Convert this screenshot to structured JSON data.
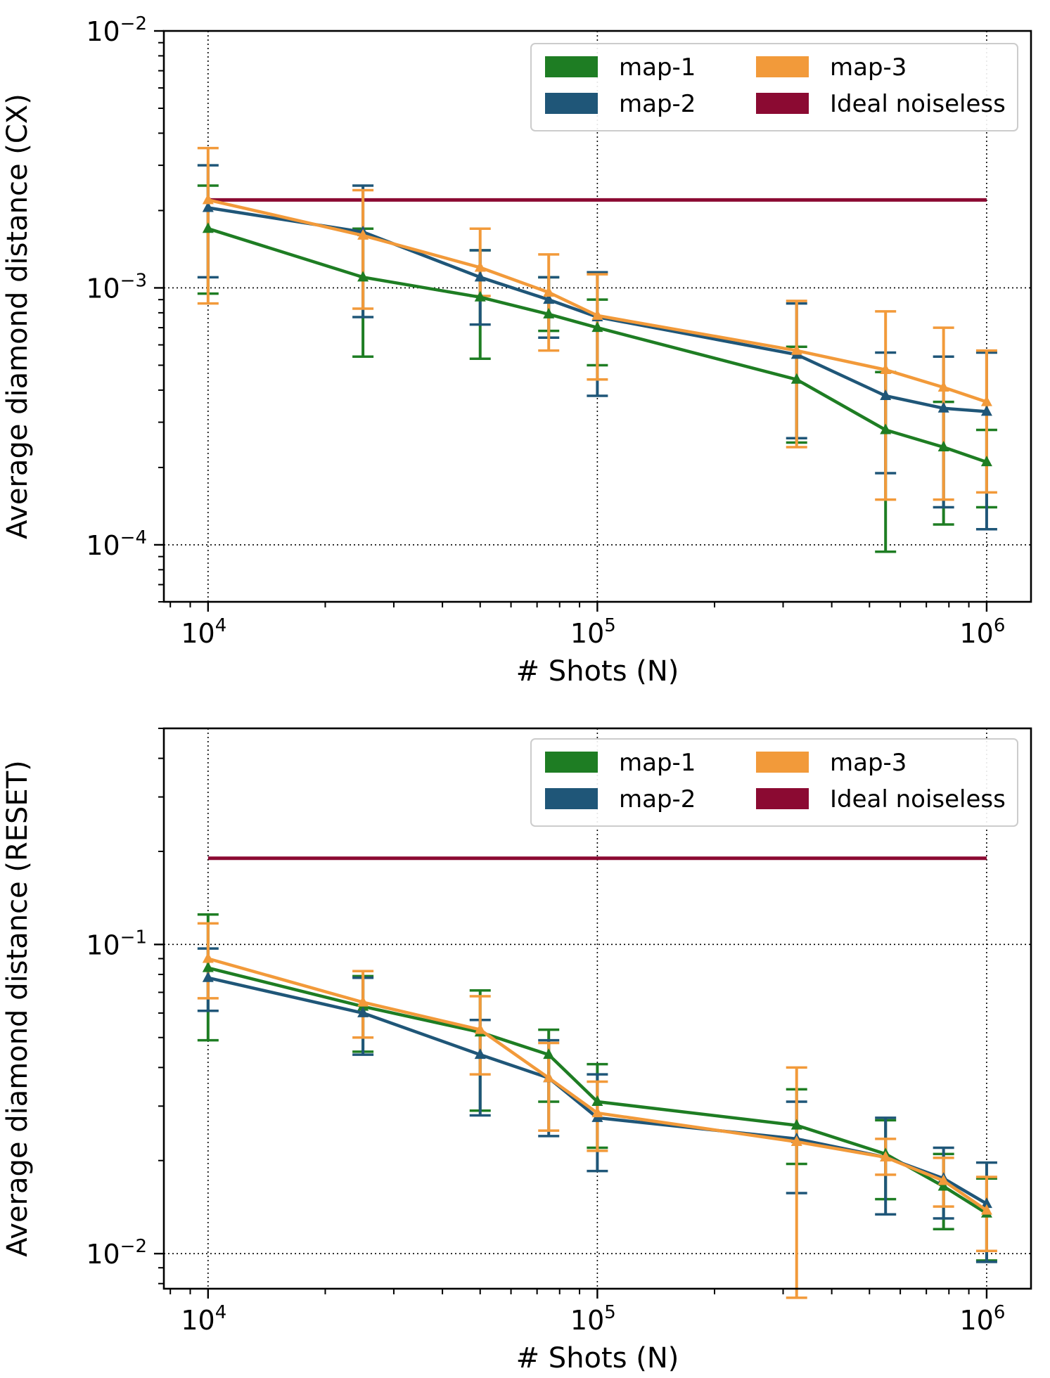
{
  "chart_data": [
    {
      "type": "line",
      "ylabel": "Average diamond distance (CX)",
      "xlabel": "# Shots (N)",
      "xscale": "log",
      "yscale": "log",
      "xlim": [
        7700,
        1300000
      ],
      "ylim": [
        6e-05,
        0.01
      ],
      "xticks": [
        {
          "value": 10000,
          "base": "10",
          "exp": "4"
        },
        {
          "value": 100000,
          "base": "10",
          "exp": "5"
        },
        {
          "value": 1000000,
          "base": "10",
          "exp": "6"
        }
      ],
      "yticks": [
        {
          "value": 0.0001,
          "base": "10",
          "exp": "−4"
        },
        {
          "value": 0.001,
          "base": "10",
          "exp": "−3"
        },
        {
          "value": 0.01,
          "base": "10",
          "exp": "−2"
        }
      ],
      "grid": "dotted at major ticks",
      "legend_position": "top-right",
      "legend": [
        "map-1",
        "map-3",
        "map-2",
        "Ideal noiseless"
      ],
      "x": [
        10000,
        25000,
        50000,
        75000,
        100000,
        325000,
        550000,
        775000,
        1000000
      ],
      "reference_line": {
        "name": "Ideal noiseless",
        "value": 0.0022,
        "color": "#8b0a32"
      },
      "series": [
        {
          "name": "map-1",
          "color": "#1e7d23",
          "values": [
            0.0017,
            0.0011,
            0.00092,
            0.00079,
            0.0007,
            0.00044,
            0.00028,
            0.00024,
            0.00021
          ],
          "lower": [
            0.00095,
            0.00054,
            0.00053,
            0.00068,
            0.0005,
            0.00025,
            9.4e-05,
            0.00012,
            0.00014
          ],
          "upper": [
            0.0025,
            0.0017,
            0.0014,
            0.0011,
            0.0009,
            0.00059,
            0.00047,
            0.00036,
            0.00028
          ]
        },
        {
          "name": "map-2",
          "color": "#1f5678",
          "values": [
            0.00205,
            0.00165,
            0.0011,
            0.0009,
            0.00077,
            0.00055,
            0.00038,
            0.00034,
            0.00033
          ],
          "lower": [
            0.0011,
            0.00077,
            0.00072,
            0.00064,
            0.00038,
            0.00026,
            0.00019,
            0.00014,
            0.000115
          ],
          "upper": [
            0.003,
            0.0025,
            0.0014,
            0.0011,
            0.00115,
            0.00087,
            0.00056,
            0.00054,
            0.00056
          ]
        },
        {
          "name": "map-3",
          "color": "#f29a3a",
          "values": [
            0.0022,
            0.0016,
            0.0012,
            0.00096,
            0.00078,
            0.00057,
            0.00048,
            0.00041,
            0.00036
          ],
          "lower": [
            0.00087,
            0.00083,
            0.00093,
            0.00057,
            0.00044,
            0.00024,
            0.00015,
            0.00015,
            0.00016
          ],
          "upper": [
            0.0035,
            0.0024,
            0.0017,
            0.00135,
            0.00113,
            0.00089,
            0.00081,
            0.0007,
            0.00057
          ]
        }
      ]
    },
    {
      "type": "line",
      "ylabel": "Average diamond distance (RESET)",
      "xlabel": "# Shots (N)",
      "xscale": "log",
      "yscale": "log",
      "xlim": [
        7700,
        1300000
      ],
      "ylim": [
        0.0077,
        0.5
      ],
      "xticks": [
        {
          "value": 10000,
          "base": "10",
          "exp": "4"
        },
        {
          "value": 100000,
          "base": "10",
          "exp": "5"
        },
        {
          "value": 1000000,
          "base": "10",
          "exp": "6"
        }
      ],
      "yticks": [
        {
          "value": 0.01,
          "base": "10",
          "exp": "−2"
        },
        {
          "value": 0.1,
          "base": "10",
          "exp": "−1"
        }
      ],
      "grid": "dotted at major ticks",
      "legend_position": "top-right",
      "legend": [
        "map-1",
        "map-3",
        "map-2",
        "Ideal noiseless"
      ],
      "x": [
        10000,
        25000,
        50000,
        75000,
        100000,
        325000,
        550000,
        775000,
        1000000
      ],
      "reference_line": {
        "name": "Ideal noiseless",
        "value": 0.19,
        "color": "#8b0a32"
      },
      "series": [
        {
          "name": "map-1",
          "color": "#1e7d23",
          "values": [
            0.084,
            0.063,
            0.052,
            0.044,
            0.031,
            0.026,
            0.021,
            0.0165,
            0.0135
          ],
          "lower": [
            0.049,
            0.045,
            0.029,
            0.031,
            0.022,
            0.0195,
            0.015,
            0.012,
            0.0095
          ],
          "upper": [
            0.125,
            0.079,
            0.071,
            0.053,
            0.041,
            0.034,
            0.027,
            0.021,
            0.0175
          ]
        },
        {
          "name": "map-2",
          "color": "#1f5678",
          "values": [
            0.078,
            0.06,
            0.044,
            0.037,
            0.0275,
            0.0235,
            0.0205,
            0.0175,
            0.0145
          ],
          "lower": [
            0.061,
            0.044,
            0.028,
            0.024,
            0.0185,
            0.0157,
            0.0134,
            0.013,
            0.0094
          ],
          "upper": [
            0.097,
            0.078,
            0.057,
            0.049,
            0.038,
            0.031,
            0.0275,
            0.022,
            0.0197
          ]
        },
        {
          "name": "map-3",
          "color": "#f29a3a",
          "values": [
            0.09,
            0.065,
            0.053,
            0.037,
            0.0285,
            0.023,
            0.0205,
            0.0172,
            0.0138
          ],
          "lower": [
            0.067,
            0.05,
            0.038,
            0.025,
            0.0215,
            0.0072,
            0.018,
            0.0142,
            0.0102
          ],
          "upper": [
            0.117,
            0.082,
            0.068,
            0.048,
            0.036,
            0.04,
            0.0235,
            0.0204,
            0.0177
          ]
        }
      ]
    }
  ]
}
